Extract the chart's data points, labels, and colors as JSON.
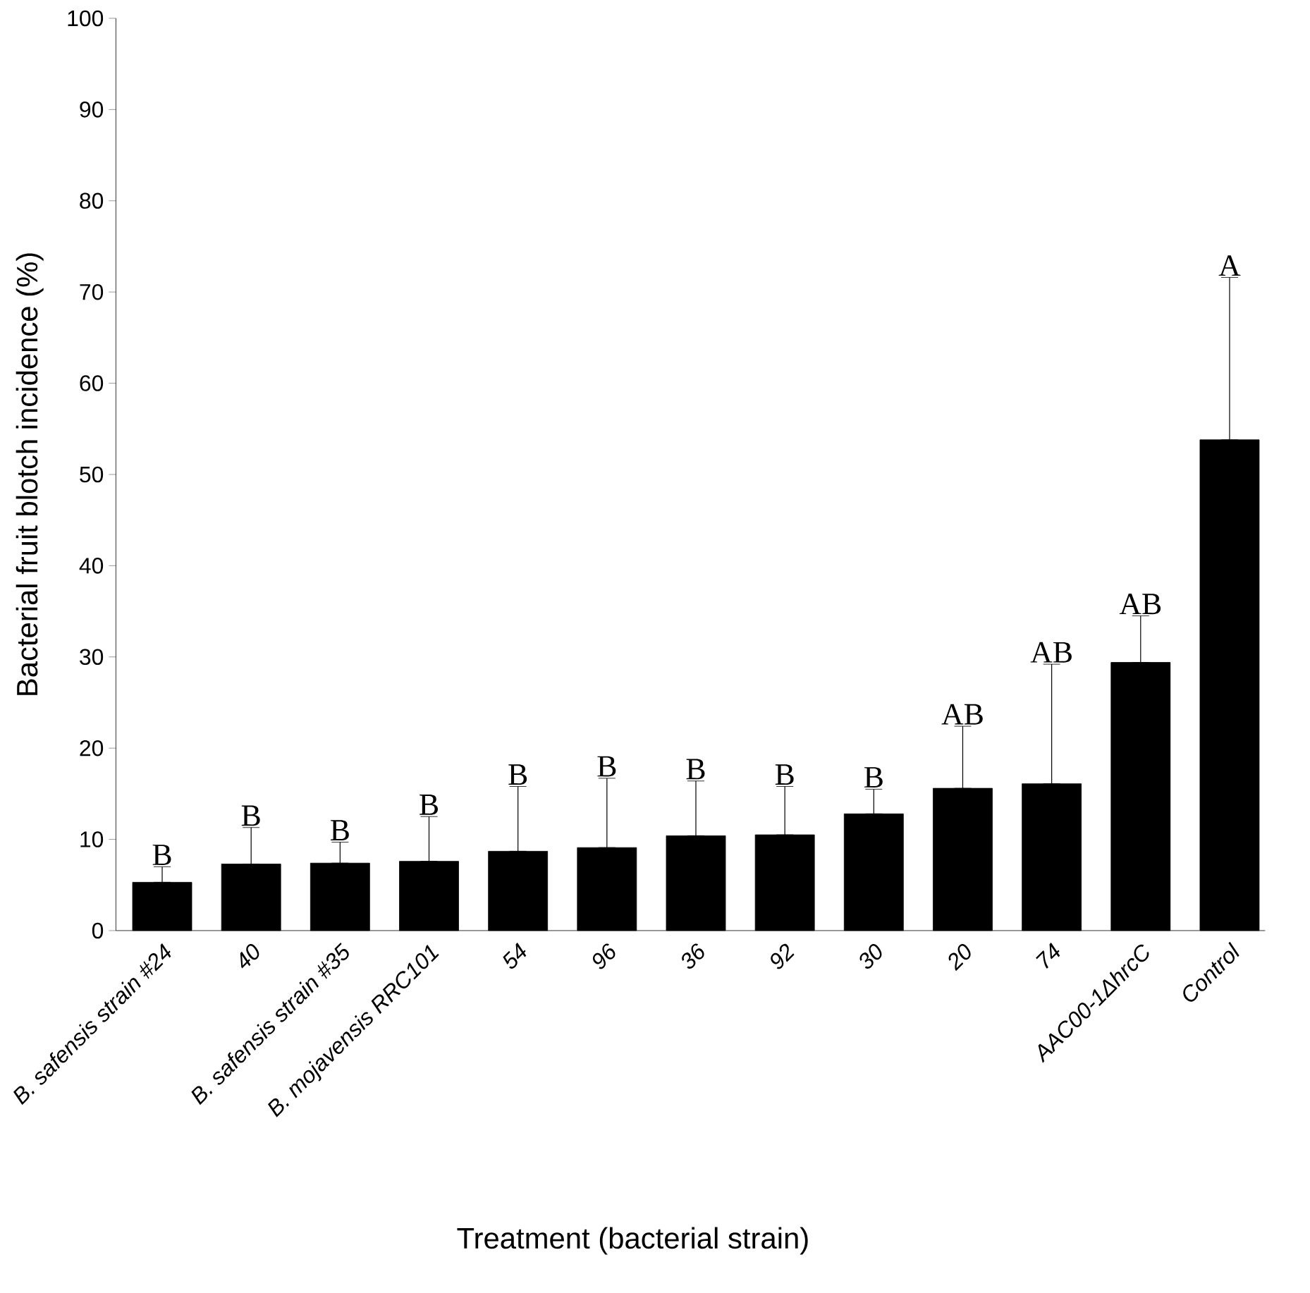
{
  "chart_data": {
    "type": "bar",
    "xlabel": "Treatment (bacterial strain)",
    "ylabel": "Bacterial fruit blotch incidence (%)",
    "categories": [
      "B. safensis strain #24",
      "40",
      "B. safensis strain #35",
      "B. mojavensis RRC101",
      "54",
      "96",
      "36",
      "92",
      "30",
      "20",
      "74",
      "AAC00-1ΔhrcC",
      "Control"
    ],
    "values": [
      5.3,
      7.3,
      7.4,
      7.6,
      8.7,
      9.1,
      10.4,
      10.5,
      12.8,
      15.6,
      16.1,
      29.4,
      53.8
    ],
    "errors": [
      [
        5.3,
        7.0
      ],
      [
        7.3,
        11.3
      ],
      [
        7.4,
        9.7
      ],
      [
        7.6,
        12.5
      ],
      [
        8.7,
        15.8
      ],
      [
        9.1,
        16.7
      ],
      [
        10.4,
        16.4
      ],
      [
        10.5,
        15.8
      ],
      [
        12.8,
        15.5
      ],
      [
        15.6,
        22.4
      ],
      [
        16.1,
        29.2
      ],
      [
        29.4,
        34.5
      ],
      [
        53.8,
        71.6
      ]
    ],
    "color": "#000000",
    "ylim": [
      0,
      100
    ],
    "yticks": [
      0,
      10,
      20,
      30,
      40,
      50,
      60,
      70,
      80,
      90,
      100
    ],
    "grid": false,
    "annotations": [
      {
        "text": "B",
        "x": "B. safensis strain #24",
        "y": 7.0
      },
      {
        "text": "B",
        "x": "40",
        "y": 11.3
      },
      {
        "text": "B",
        "x": "B. safensis strain #35",
        "y": 9.7
      },
      {
        "text": "B",
        "x": "B. mojavensis RRC101",
        "y": 12.5
      },
      {
        "text": "B",
        "x": "54",
        "y": 15.8
      },
      {
        "text": "B",
        "x": "96",
        "y": 16.7
      },
      {
        "text": "B",
        "x": "36",
        "y": 16.4
      },
      {
        "text": "B",
        "x": "92",
        "y": 15.8
      },
      {
        "text": "B",
        "x": "30",
        "y": 15.5
      },
      {
        "text": "AB",
        "x": "20",
        "y": 22.4
      },
      {
        "text": "AB",
        "x": "74",
        "y": 29.2
      },
      {
        "text": "AB",
        "x": "AAC00-1ΔhrcC",
        "y": 34.5
      },
      {
        "text": "A",
        "x": "Control",
        "y": 71.6
      }
    ]
  }
}
